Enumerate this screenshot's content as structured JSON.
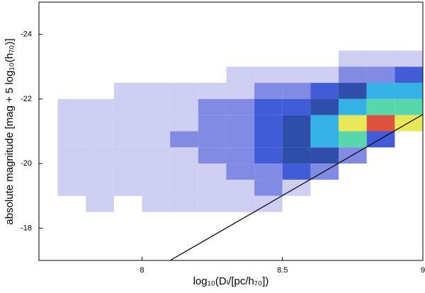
{
  "chart_data": {
    "type": "heatmap",
    "x_label": "log₁₀(Dₗ/[pc/h₇₀])",
    "y_label": "absolute magnitude [mag + 5 log₁₀(h₇₀)]",
    "xlim": [
      7.633,
      9
    ],
    "ylim": [
      -17,
      -25
    ],
    "xticks": [
      8,
      8.5,
      9
    ],
    "yticks": [
      -24,
      -22,
      -20,
      -18
    ],
    "x_edges": [
      7.7,
      7.8,
      7.9,
      8.0,
      8.1,
      8.2,
      8.3,
      8.4,
      8.5,
      8.6,
      8.7,
      8.8,
      8.9,
      9.0
    ],
    "y_edges": [
      -23.5,
      -23,
      -22.5,
      -22,
      -21.5,
      -21,
      -20.5,
      -20,
      -19.5,
      -19,
      -18.5
    ],
    "density": [
      [
        0,
        0,
        0,
        0,
        0,
        0,
        0,
        0,
        0,
        0,
        1,
        1,
        1
      ],
      [
        0,
        0,
        0,
        0,
        0,
        0,
        1,
        1,
        1,
        1,
        2,
        2,
        3
      ],
      [
        0,
        0,
        1,
        1,
        1,
        1,
        1,
        2,
        2,
        3,
        4,
        5,
        5
      ],
      [
        1,
        1,
        1,
        1,
        1,
        2,
        2,
        3,
        3,
        4,
        5,
        6,
        6
      ],
      [
        1,
        1,
        1,
        1,
        1,
        2,
        2,
        3,
        4,
        5,
        7,
        8,
        7
      ],
      [
        1,
        1,
        1,
        1,
        2,
        2,
        2,
        3,
        4,
        5,
        6,
        3,
        0
      ],
      [
        1,
        1,
        1,
        1,
        1,
        2,
        2,
        3,
        4,
        4,
        2,
        0,
        0
      ],
      [
        1,
        1,
        1,
        1,
        1,
        1,
        2,
        2,
        3,
        2,
        0,
        0,
        0
      ],
      [
        1,
        1,
        1,
        1,
        1,
        1,
        1,
        2,
        1,
        0,
        0,
        0,
        0
      ],
      [
        0,
        1,
        0,
        1,
        1,
        1,
        1,
        1,
        0,
        0,
        0,
        0,
        0
      ]
    ],
    "colormap": [
      "#ffffff",
      "#c4c6ee",
      "#6a78de",
      "#2040d0",
      "#0a2f9a",
      "#10a4e0",
      "#3ccf9c",
      "#e4e23c",
      "#d8321c"
    ],
    "series": [
      {
        "x": [
          8.1,
          9
        ],
        "values": [
          -17,
          -21.52
        ],
        "color": "#000000"
      }
    ]
  }
}
